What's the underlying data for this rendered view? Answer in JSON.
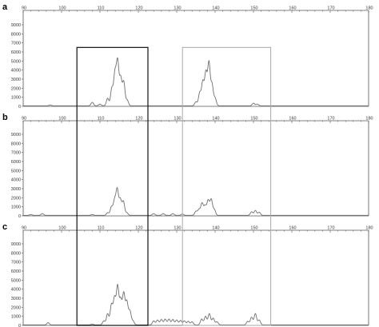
{
  "chart_data": [
    {
      "panel_label": "a",
      "type": "line",
      "x_ticks": [
        90,
        100,
        110,
        120,
        130,
        140,
        150,
        160,
        170,
        180
      ],
      "y_ticks": [
        0,
        1000,
        2000,
        3000,
        4000,
        5000,
        6000,
        7000,
        8000,
        9000
      ],
      "xlim": [
        90,
        180
      ],
      "ylim": [
        0,
        9000
      ],
      "peaks": [
        {
          "x": 97.0,
          "y": 150
        },
        {
          "x": 108.0,
          "y": 450
        },
        {
          "x": 110.0,
          "y": 250
        },
        {
          "x": 112.0,
          "y": 900
        },
        {
          "x": 113.1,
          "y": 2000
        },
        {
          "x": 113.9,
          "y": 3600
        },
        {
          "x": 114.6,
          "y": 4900
        },
        {
          "x": 115.4,
          "y": 3100
        },
        {
          "x": 116.2,
          "y": 2700
        },
        {
          "x": 117.1,
          "y": 700
        },
        {
          "x": 135.0,
          "y": 500
        },
        {
          "x": 136.0,
          "y": 1500
        },
        {
          "x": 136.8,
          "y": 2700
        },
        {
          "x": 137.6,
          "y": 3700
        },
        {
          "x": 138.4,
          "y": 4800
        },
        {
          "x": 139.2,
          "y": 2400
        },
        {
          "x": 140.0,
          "y": 900
        },
        {
          "x": 150.0,
          "y": 350
        },
        {
          "x": 151.0,
          "y": 250
        }
      ]
    },
    {
      "panel_label": "b",
      "type": "line",
      "x_ticks": [
        90,
        100,
        110,
        120,
        130,
        140,
        150,
        160,
        170,
        180
      ],
      "y_ticks": [
        0,
        1000,
        2000,
        3000,
        4000,
        5000,
        6000,
        7000,
        8000,
        9000
      ],
      "xlim": [
        90,
        180
      ],
      "ylim": [
        0,
        9000
      ],
      "peaks": [
        {
          "x": 92.0,
          "y": 150
        },
        {
          "x": 95.0,
          "y": 250
        },
        {
          "x": 108.0,
          "y": 150
        },
        {
          "x": 112.0,
          "y": 350
        },
        {
          "x": 113.0,
          "y": 1000
        },
        {
          "x": 113.8,
          "y": 1700
        },
        {
          "x": 114.5,
          "y": 2900
        },
        {
          "x": 115.3,
          "y": 1800
        },
        {
          "x": 116.1,
          "y": 1600
        },
        {
          "x": 117.0,
          "y": 350
        },
        {
          "x": 124.0,
          "y": 250
        },
        {
          "x": 126.5,
          "y": 250
        },
        {
          "x": 129.0,
          "y": 250
        },
        {
          "x": 131.5,
          "y": 200
        },
        {
          "x": 135.0,
          "y": 500
        },
        {
          "x": 135.8,
          "y": 700
        },
        {
          "x": 136.6,
          "y": 1400
        },
        {
          "x": 137.4,
          "y": 1100
        },
        {
          "x": 138.2,
          "y": 1700
        },
        {
          "x": 139.0,
          "y": 1800
        },
        {
          "x": 139.8,
          "y": 700
        },
        {
          "x": 149.5,
          "y": 450
        },
        {
          "x": 150.5,
          "y": 600
        },
        {
          "x": 151.5,
          "y": 400
        }
      ]
    },
    {
      "panel_label": "c",
      "type": "line",
      "x_ticks": [
        90,
        100,
        110,
        120,
        130,
        140,
        150,
        160,
        170,
        180
      ],
      "y_ticks": [
        0,
        1000,
        2000,
        3000,
        4000,
        5000,
        6000,
        7000,
        8000,
        9000
      ],
      "xlim": [
        90,
        180
      ],
      "ylim": [
        0,
        9000
      ],
      "peaks": [
        {
          "x": 96.5,
          "y": 300
        },
        {
          "x": 108.0,
          "y": 150
        },
        {
          "x": 111.0,
          "y": 500
        },
        {
          "x": 112.0,
          "y": 1300
        },
        {
          "x": 113.0,
          "y": 2300
        },
        {
          "x": 113.8,
          "y": 3000
        },
        {
          "x": 114.6,
          "y": 4300
        },
        {
          "x": 115.4,
          "y": 2800
        },
        {
          "x": 116.2,
          "y": 3500
        },
        {
          "x": 117.0,
          "y": 2600
        },
        {
          "x": 117.8,
          "y": 1600
        },
        {
          "x": 118.6,
          "y": 500
        },
        {
          "x": 124.0,
          "y": 500
        },
        {
          "x": 125.0,
          "y": 600
        },
        {
          "x": 126.0,
          "y": 650
        },
        {
          "x": 127.0,
          "y": 700
        },
        {
          "x": 128.0,
          "y": 700
        },
        {
          "x": 129.0,
          "y": 650
        },
        {
          "x": 130.0,
          "y": 600
        },
        {
          "x": 131.0,
          "y": 550
        },
        {
          "x": 132.0,
          "y": 500
        },
        {
          "x": 133.0,
          "y": 450
        },
        {
          "x": 134.0,
          "y": 400
        },
        {
          "x": 136.5,
          "y": 700
        },
        {
          "x": 137.5,
          "y": 1000
        },
        {
          "x": 138.5,
          "y": 1300
        },
        {
          "x": 139.5,
          "y": 800
        },
        {
          "x": 140.5,
          "y": 400
        },
        {
          "x": 148.5,
          "y": 450
        },
        {
          "x": 149.5,
          "y": 900
        },
        {
          "x": 150.5,
          "y": 1300
        },
        {
          "x": 151.5,
          "y": 600
        }
      ]
    }
  ],
  "boxes": [
    {
      "x_from": 104,
      "x_to": 122.5,
      "color": "#111111"
    },
    {
      "x_from": 131.5,
      "x_to": 154.5,
      "color": "#aaaaaa"
    }
  ],
  "colors": {
    "trace": "#6f6f6f",
    "axis": "#555555",
    "text": "#333333"
  }
}
